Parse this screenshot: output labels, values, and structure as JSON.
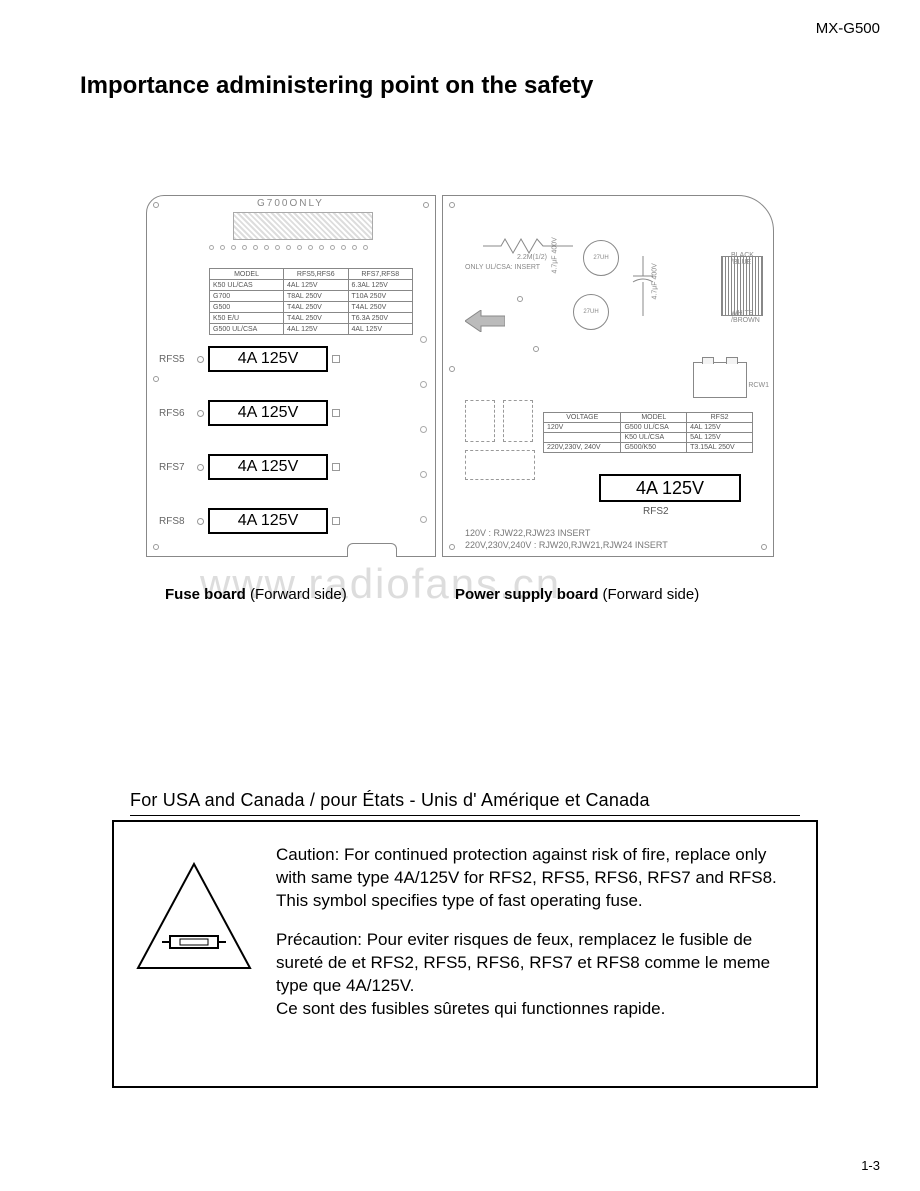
{
  "model": "MX-G500",
  "title": "Importance administering point on the safety",
  "watermark": "www.radiofans.cn",
  "page_number": "1-3",
  "fuse_board": {
    "caption_bold": "Fuse board",
    "caption_rest": " (Forward side)",
    "header_label": "G700ONLY",
    "table": {
      "headers": [
        "MODEL",
        "RFS5,RFS6",
        "RFS7,RFS8"
      ],
      "rows": [
        [
          "K50 UL/CAS",
          "4AL 125V",
          "6.3AL 125V"
        ],
        [
          "G700",
          "T8AL 250V",
          "T10A 250V"
        ],
        [
          "G500",
          "T4AL 250V",
          "T4AL 250V"
        ],
        [
          "K50 E/U",
          "T4AL 250V",
          "T6.3A 250V"
        ],
        [
          "G500 UL/CSA",
          "4AL 125V",
          "4AL 125V"
        ]
      ]
    },
    "fuses": [
      {
        "label": "RFS5",
        "value": "4A 125V"
      },
      {
        "label": "RFS6",
        "value": "4A 125V"
      },
      {
        "label": "RFS7",
        "value": "4A 125V"
      },
      {
        "label": "RFS8",
        "value": "4A 125V"
      }
    ]
  },
  "ps_board": {
    "caption_bold": "Power supply board",
    "caption_rest": " (Forward side)",
    "resistor_note": "2.2M(1/2)",
    "insert_note": "ONLY UL/CSA: INSERT",
    "cap1": "27UH",
    "cap2": "27UH",
    "cap_side1": "4.7µF 400V",
    "cap_side2": "4.7µF 400V",
    "conn_top": "BLACK /BLUE",
    "conn_bot": "WHITE /BROWN",
    "rcw": "RCW1",
    "table": {
      "headers": [
        "VOLTAGE",
        "MODEL",
        "RFS2"
      ],
      "rows": [
        [
          "120V",
          "G500 UL/CSA",
          "4AL 125V"
        ],
        [
          "",
          "K50 UL/CSA",
          "5AL 125V"
        ],
        [
          "220V,230V, 240V",
          "G500/K50",
          "T3.15AL 250V"
        ]
      ]
    },
    "rfs2_value": "4A 125V",
    "rfs2_label": "RFS2",
    "voltage_note1": "120V : RJW22,RJW23 INSERT",
    "voltage_note2": "220V,230V,240V : RJW20,RJW21,RJW24 INSERT"
  },
  "region_header": "For USA and Canada / pour États - Unis d' Amérique et Canada",
  "caution": {
    "en": "Caution: For continued protection against risk of fire, replace only with same type 4A/125V for RFS2, RFS5, RFS6, RFS7 and RFS8.\nThis symbol specifies type of fast operating fuse.",
    "fr": "Précaution: Pour eviter risques de feux, remplacez le fusible de sureté de et RFS2, RFS5, RFS6, RFS7 et RFS8 comme le meme type que 4A/125V.\nCe sont des fusibles sûretes qui functionnes rapide."
  }
}
